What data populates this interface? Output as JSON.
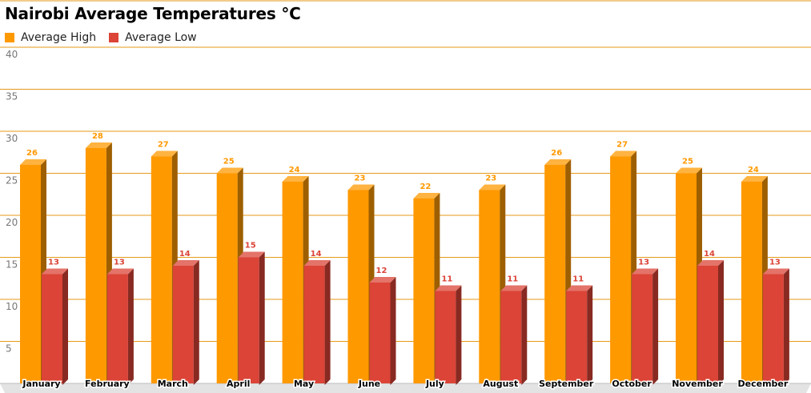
{
  "chart_data": {
    "type": "bar",
    "title": "Nairobi Average Temperatures °C",
    "categories": [
      "January",
      "February",
      "March",
      "April",
      "May",
      "June",
      "July",
      "August",
      "September",
      "October",
      "November",
      "December"
    ],
    "series": [
      {
        "name": "Average High",
        "color": "#ff9900",
        "values": [
          26,
          28,
          27,
          25,
          24,
          23,
          22,
          23,
          26,
          27,
          25,
          24
        ]
      },
      {
        "name": "Average Low",
        "color": "#db4437",
        "values": [
          13,
          13,
          14,
          15,
          14,
          12,
          11,
          11,
          11,
          13,
          14,
          13
        ]
      }
    ],
    "yticks": [
      "5",
      "10",
      "15",
      "20",
      "25",
      "30",
      "35",
      "40"
    ],
    "ylim": [
      0,
      40
    ],
    "grid": true,
    "legend_position": "top-left",
    "style": "3d-columns"
  }
}
